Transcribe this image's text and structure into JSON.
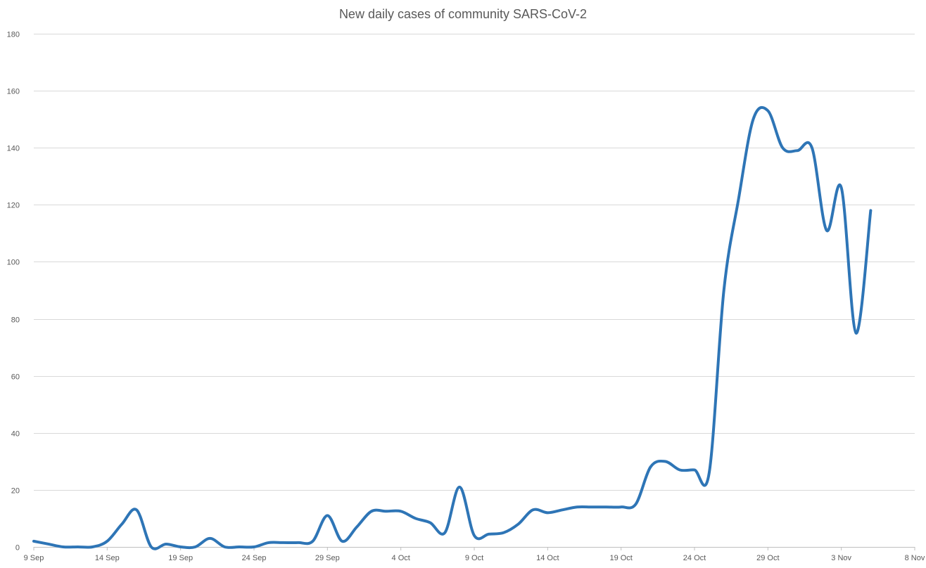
{
  "chart_data": {
    "type": "line",
    "title": "New daily cases of community SARS-CoV-2",
    "xlabel": "",
    "ylabel": "",
    "ylim": [
      0,
      180
    ],
    "y_ticks": [
      0,
      20,
      40,
      60,
      80,
      100,
      120,
      140,
      160,
      180
    ],
    "x_tick_labels": [
      "9 Sep",
      "14 Sep",
      "19 Sep",
      "24 Sep",
      "29 Sep",
      "4 Oct",
      "9 Oct",
      "14 Oct",
      "19 Oct",
      "24 Oct",
      "29 Oct",
      "3 Nov",
      "8 Nov"
    ],
    "grid": "horizontal",
    "legend": "none",
    "line_color": "#2E75B6",
    "series": [
      {
        "x": [
          "9 Sep",
          "10 Sep",
          "11 Sep",
          "12 Sep",
          "13 Sep",
          "14 Sep",
          "15 Sep",
          "16 Sep",
          "17 Sep",
          "18 Sep",
          "19 Sep",
          "20 Sep",
          "21 Sep",
          "22 Sep",
          "23 Sep",
          "24 Sep",
          "25 Sep",
          "26 Sep",
          "27 Sep",
          "28 Sep",
          "29 Sep",
          "30 Sep",
          "1 Oct",
          "2 Oct",
          "3 Oct",
          "4 Oct",
          "5 Oct",
          "6 Oct",
          "7 Oct",
          "8 Oct",
          "9 Oct",
          "10 Oct",
          "11 Oct",
          "12 Oct",
          "13 Oct",
          "14 Oct",
          "15 Oct",
          "16 Oct",
          "17 Oct",
          "18 Oct",
          "19 Oct",
          "20 Oct",
          "21 Oct",
          "22 Oct",
          "23 Oct",
          "24 Oct",
          "25 Oct",
          "26 Oct",
          "27 Oct",
          "28 Oct",
          "29 Oct",
          "30 Oct",
          "31 Oct",
          "1 Nov",
          "2 Nov",
          "3 Nov",
          "4 Nov",
          "5 Nov"
        ],
        "values": [
          2,
          1,
          0,
          0,
          0,
          2,
          8,
          13,
          0,
          1,
          0,
          0,
          3,
          0,
          0,
          0,
          1.5,
          1.5,
          1.5,
          2,
          11,
          2,
          7,
          12.5,
          12.5,
          12.5,
          10,
          8.5,
          5,
          21,
          4,
          4.5,
          5,
          8,
          13,
          12,
          13,
          14,
          14,
          14,
          14,
          15,
          28,
          30,
          27,
          27,
          26,
          90,
          122,
          150,
          153,
          140,
          139,
          140,
          111,
          126,
          75,
          118
        ]
      }
    ]
  }
}
